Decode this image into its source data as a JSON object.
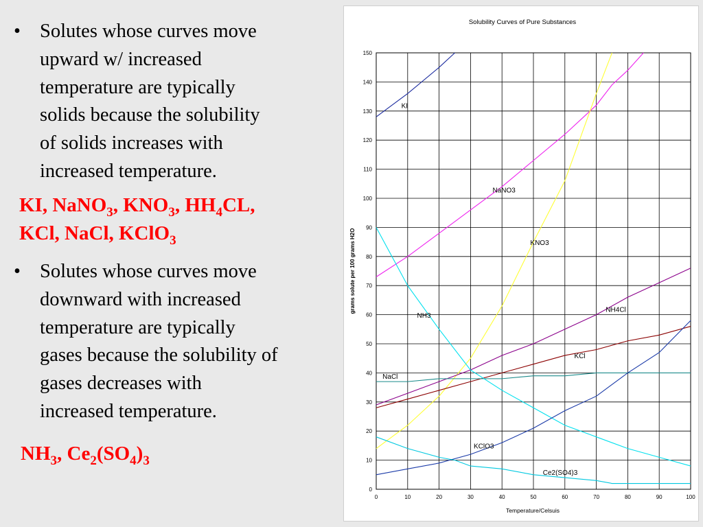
{
  "bullets": [
    {
      "marker": "•",
      "lines": [
        "Solutes whose curves move",
        "upward w/ increased",
        "temperature are typically",
        "solids because the solubility",
        "of solids increases with",
        "increased temperature."
      ]
    },
    {
      "marker": "•",
      "lines": [
        "Solutes whose curves move",
        "downward with increased",
        "temperature are typically",
        "gases because the solubility of",
        "gases decreases with",
        "increased temperature."
      ]
    }
  ],
  "solids_list": {
    "line1": [
      {
        "t": "KI, NaNO",
        "sub": false
      },
      {
        "t": "3",
        "sub": true
      },
      {
        "t": ", KNO",
        "sub": false
      },
      {
        "t": "3",
        "sub": true
      },
      {
        "t": ", HH",
        "sub": false
      },
      {
        "t": "4",
        "sub": true
      },
      {
        "t": "CL,",
        "sub": false
      }
    ],
    "line2": [
      {
        "t": "KCl, NaCl, KClO",
        "sub": false
      },
      {
        "t": "3",
        "sub": true
      }
    ]
  },
  "gases_list": {
    "line1": [
      {
        "t": "NH",
        "sub": false
      },
      {
        "t": "3",
        "sub": true
      },
      {
        "t": ", Ce",
        "sub": false
      },
      {
        "t": "2",
        "sub": true
      },
      {
        "t": "(SO",
        "sub": false
      },
      {
        "t": "4",
        "sub": true
      },
      {
        "t": ")",
        "sub": false
      },
      {
        "t": "3",
        "sub": true
      }
    ]
  },
  "colors": {
    "accent_red": "#ff0000"
  },
  "chart_data": {
    "type": "line",
    "title": "Solubility Curves of Pure Substances",
    "xlabel": "Temperature/Celsuis",
    "ylabel": "grams solute per 100 grams H2O",
    "xlim": [
      0,
      100
    ],
    "ylim": [
      0,
      150
    ],
    "xticks": [
      0,
      10,
      20,
      30,
      40,
      50,
      60,
      70,
      80,
      90,
      100
    ],
    "yticks": [
      0,
      10,
      20,
      30,
      40,
      50,
      60,
      70,
      80,
      90,
      100,
      110,
      120,
      130,
      140,
      150
    ],
    "grid": true,
    "series": [
      {
        "name": "KI",
        "color": "#1a2a9e",
        "label_at": [
          8,
          131
        ],
        "x": [
          0,
          10,
          20,
          25
        ],
        "y": [
          128,
          136,
          145,
          150
        ]
      },
      {
        "name": "NaNO3",
        "color": "#ee22ee",
        "label_at": [
          37,
          102
        ],
        "x": [
          0,
          10,
          20,
          30,
          40,
          50,
          60,
          70,
          75,
          80,
          85
        ],
        "y": [
          73,
          80,
          88,
          96,
          104,
          113,
          122,
          132,
          139,
          144,
          150
        ]
      },
      {
        "name": "KNO3",
        "color": "#ffff33",
        "label_at": [
          49,
          84
        ],
        "x": [
          0,
          10,
          20,
          30,
          40,
          50,
          60,
          70,
          75
        ],
        "y": [
          14,
          22,
          32,
          45,
          63,
          85,
          106,
          136,
          150
        ]
      },
      {
        "name": "NH4Cl",
        "color": "#8b008b",
        "label_at": [
          73,
          61
        ],
        "x": [
          0,
          10,
          20,
          30,
          40,
          50,
          60,
          70,
          80,
          90,
          100
        ],
        "y": [
          29,
          33,
          37,
          41,
          46,
          50,
          55,
          60,
          66,
          71,
          76
        ]
      },
      {
        "name": "KCl",
        "color": "#8b0000",
        "label_at": [
          63,
          45
        ],
        "x": [
          0,
          10,
          20,
          30,
          40,
          50,
          60,
          70,
          80,
          90,
          100
        ],
        "y": [
          28,
          31,
          34,
          37,
          40,
          43,
          46,
          48,
          51,
          53,
          56
        ]
      },
      {
        "name": "NaCl",
        "color": "#1a8a8a",
        "label_at": [
          2,
          38
        ],
        "x": [
          0,
          10,
          20,
          30,
          40,
          50,
          60,
          70,
          80,
          90,
          100
        ],
        "y": [
          37,
          37,
          38,
          38,
          38,
          39,
          39,
          40,
          40,
          40,
          40
        ]
      },
      {
        "name": "NH3",
        "color": "#00e0ee",
        "label_at": [
          13,
          59
        ],
        "x": [
          0,
          10,
          20,
          30,
          40,
          50,
          60,
          70,
          80,
          90,
          100
        ],
        "y": [
          90,
          70,
          55,
          41,
          34,
          28,
          22,
          18,
          14,
          11,
          8
        ]
      },
      {
        "name": "KClO3",
        "color": "#1a3aa8",
        "label_at": [
          31,
          14
        ],
        "x": [
          0,
          10,
          20,
          30,
          40,
          50,
          60,
          70,
          80,
          90,
          100
        ],
        "y": [
          5,
          7,
          9,
          12,
          16,
          21,
          27,
          32,
          40,
          47,
          58
        ]
      },
      {
        "name": "Ce2(SO4)3",
        "color": "#00c8e0",
        "label_at": [
          53,
          5
        ],
        "x": [
          0,
          10,
          20,
          25,
          30,
          40,
          50,
          60,
          70,
          75,
          80,
          90,
          100
        ],
        "y": [
          18,
          14,
          11,
          10,
          8,
          7,
          5,
          4,
          3,
          2,
          2,
          2,
          2
        ]
      }
    ]
  }
}
